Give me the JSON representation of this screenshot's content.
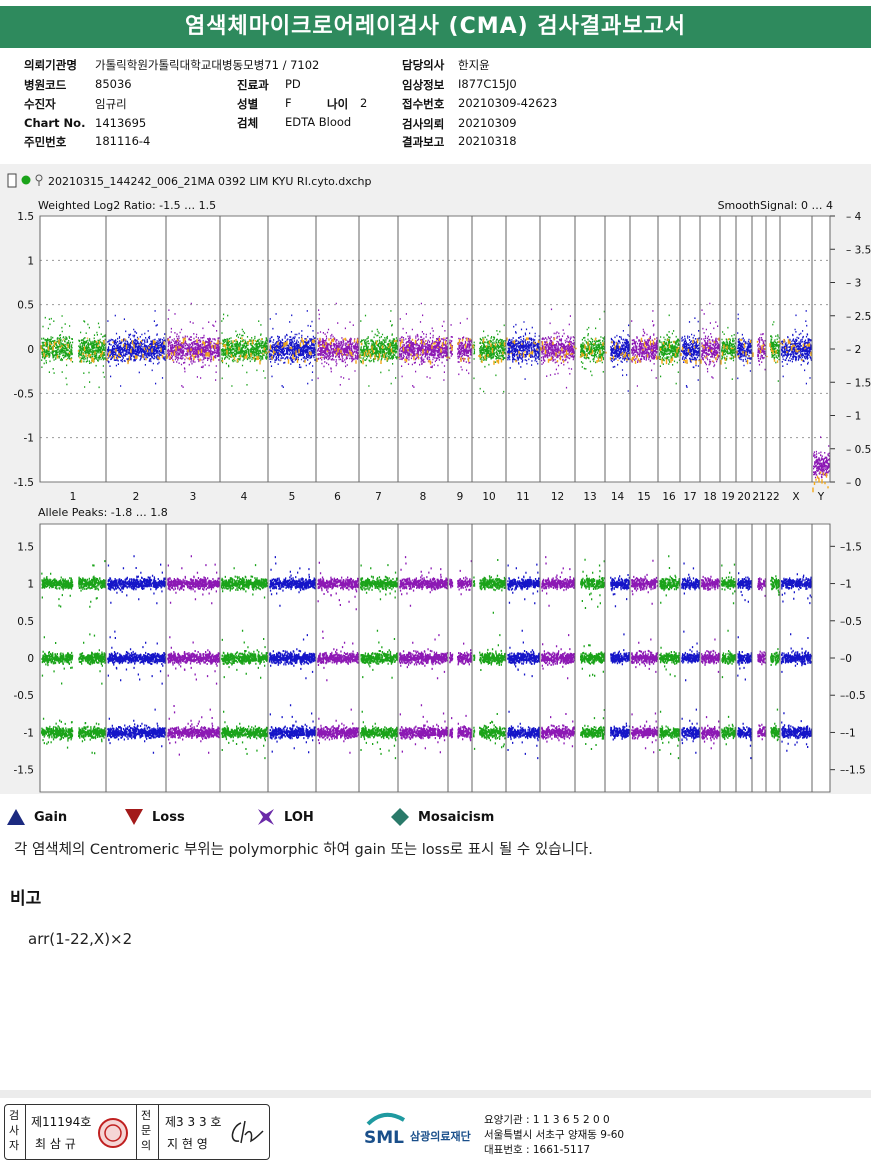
{
  "title": "염색체마이크로어레이검사 (CMA) 검사결과보고서",
  "info": {
    "institution_label": "의뢰기관명",
    "institution": "가톨릭학원가톨릭대학교대병동모병71 / 7102",
    "hospital_code_label": "병원코드",
    "hospital_code": "85036",
    "patient_label": "수진자",
    "patient": "임규리",
    "chart_no_label": "Chart No.",
    "chart_no": "1413695",
    "id_no_label": "주민번호",
    "id_no": "181116-4",
    "dept_label": "진료과",
    "dept": "PD",
    "sex_label": "성별",
    "sex": "F",
    "age_label": "나이",
    "age": "2",
    "specimen_label": "검체",
    "specimen": "EDTA Blood",
    "doctor_label": "담당의사",
    "doctor": "한지윤",
    "clinical_label": "임상정보",
    "clinical": "I877C15J0",
    "receipt_label": "접수번호",
    "receipt": "20210309-42623",
    "request_label": "검사의뢰",
    "request_date": "20210309",
    "report_label": "결과보고",
    "report_date": "20210318"
  },
  "chart": {
    "filename": "20210315_144242_006_21MA 0392 LIM KYU RI.cyto.dxchp",
    "top_title": "Weighted Log2 Ratio: -1.5 … 1.5",
    "top_right_title": "SmoothSignal: 0 … 4",
    "bottom_title": "Allele Peaks: -1.8 … 1.8",
    "top_left_ticks": [
      "1.5",
      "1",
      "0.5",
      "0",
      "-0.5",
      "-1",
      "-1.5"
    ],
    "top_right_ticks": [
      "4",
      "3.5",
      "3",
      "2.5",
      "2",
      "1.5",
      "1",
      "0.5",
      "0"
    ],
    "bottom_left_ticks": [
      "1.5",
      "1",
      "0.5",
      "0",
      "-0.5",
      "-1",
      "-1.5"
    ],
    "bottom_right_ticks": [
      "1.5",
      "1",
      "0.5",
      "0",
      "-0.5",
      "-1",
      "-1.5"
    ],
    "chromosomes": [
      "1",
      "2",
      "3",
      "4",
      "5",
      "6",
      "7",
      "8",
      "9",
      "10",
      "11",
      "12",
      "13",
      "14",
      "15",
      "16",
      "17",
      "18",
      "19",
      "20",
      "21",
      "22",
      "X",
      "Y"
    ],
    "colors": {
      "green": "#1aa319",
      "blue": "#1515c8",
      "purple": "#8c18b4",
      "orange": "#f3a91a"
    }
  },
  "chart_data": {
    "type": "scatter",
    "title": "Weighted Log2 Ratio / Allele Peaks by chromosome",
    "categories": [
      "1",
      "2",
      "3",
      "4",
      "5",
      "6",
      "7",
      "8",
      "9",
      "10",
      "11",
      "12",
      "13",
      "14",
      "15",
      "16",
      "17",
      "18",
      "19",
      "20",
      "21",
      "22",
      "X",
      "Y"
    ],
    "series": [
      {
        "name": "Weighted Log2 Ratio (median)",
        "values": [
          0,
          0,
          0,
          0,
          0,
          0,
          0,
          0,
          0,
          0,
          0,
          0,
          0,
          0,
          0,
          0,
          0,
          0,
          0,
          0,
          0,
          0,
          0,
          -1.3
        ]
      },
      {
        "name": "SmoothSignal (copy number)",
        "values": [
          2,
          2,
          2,
          2,
          2,
          2,
          2,
          2,
          2,
          2,
          2,
          2,
          2,
          2,
          2,
          2,
          2,
          2,
          2,
          2,
          2,
          2,
          2,
          0
        ]
      },
      {
        "name": "Allele Peaks (bands)",
        "values": [
          1,
          0,
          -1
        ]
      }
    ],
    "ylim_top": [
      -1.5,
      1.5
    ],
    "ylim_top_right": [
      0,
      4
    ],
    "ylim_bottom": [
      -1.8,
      1.8
    ]
  },
  "legend": [
    {
      "icon": "gain-triangle-icon",
      "label": "Gain"
    },
    {
      "icon": "loss-triangle-icon",
      "label": "Loss"
    },
    {
      "icon": "loh-star-icon",
      "label": "LOH"
    },
    {
      "icon": "mosaicism-diamond-icon",
      "label": "Mosaicism"
    }
  ],
  "note": "각 염색체의 Centromeric 부위는 polymorphic 하여 gain 또는 loss로 표시 될 수 있습니다.",
  "remark_title": "비고",
  "remark": "arr(1-22,X)×2",
  "sign": {
    "examiner_label": "검사자",
    "examiner_no": "제11194호",
    "examiner_name": "최 삼 규",
    "confirm_label": "전문의",
    "confirm_no": "제3 3 3 호",
    "confirm_name": "지 현 영"
  },
  "org": {
    "logo": "SML",
    "name": "삼광의료재단",
    "line1": "요양기관 : 1 1 3 6 5 2 0 0",
    "line2": "서울특별시 서초구 양재동 9-60",
    "line3": "대표번호 : 1661-5117"
  }
}
